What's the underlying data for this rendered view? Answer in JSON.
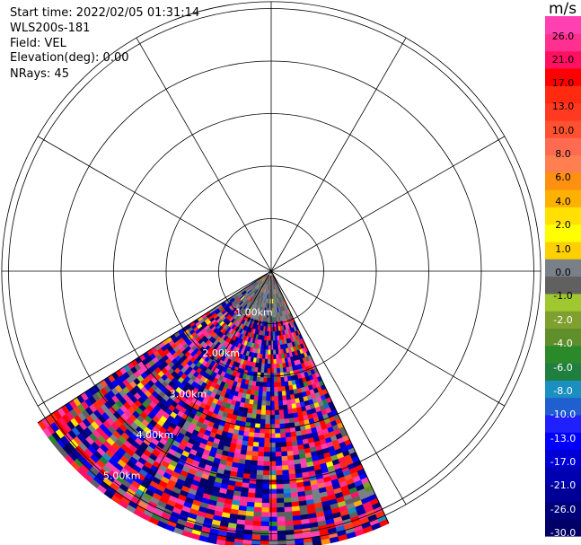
{
  "info": {
    "start_time": "Start time: 2022/02/05 01:31:14",
    "instrument": "WLS200s-181",
    "field": "Field: VEL",
    "elevation": "Elevation(deg): 0.00",
    "nrays": "NRays: 45"
  },
  "colorbar": {
    "unit": "m/s",
    "segments": [
      {
        "color": "#000066"
      },
      {
        "color": "#00007a"
      },
      {
        "color": "#000099"
      },
      {
        "color": "#0000b3"
      },
      {
        "color": "#0000d6"
      },
      {
        "color": "#0000ff"
      },
      {
        "color": "#2020ff"
      },
      {
        "color": "#1f5fd0"
      },
      {
        "color": "#1a8fc0"
      },
      {
        "color": "#1f7f3f"
      },
      {
        "color": "#2a8a2a"
      },
      {
        "color": "#5f8f2a"
      },
      {
        "color": "#7f9f2f"
      },
      {
        "color": "#9fc82f"
      },
      {
        "color": "#606060"
      },
      {
        "color": "#7a8088"
      },
      {
        "color": "#ffd000"
      },
      {
        "color": "#ffff00"
      },
      {
        "color": "#ffe000"
      },
      {
        "color": "#ffb000"
      },
      {
        "color": "#ff9010"
      },
      {
        "color": "#ff7f50"
      },
      {
        "color": "#ff6a50"
      },
      {
        "color": "#ff5030"
      },
      {
        "color": "#ff3a20"
      },
      {
        "color": "#ff2a10"
      },
      {
        "color": "#ff0000"
      },
      {
        "color": "#ff1060"
      },
      {
        "color": "#ff3090"
      },
      {
        "color": "#ff40b0"
      }
    ],
    "ticks": [
      "-30.0",
      "-26.0",
      "-21.0",
      "-17.0",
      "-13.0",
      "-10.0",
      "-8.0",
      "-6.0",
      "-4.0",
      "-2.0",
      "-1.0",
      "0.0",
      "1.0",
      "2.0",
      "4.0",
      "6.0",
      "8.0",
      "10.0",
      "13.0",
      "17.0",
      "21.0",
      "26.0"
    ]
  },
  "chart_data": {
    "type": "heatmap",
    "projection": "polar-ppi",
    "field": "VEL",
    "rings_km": [
      1,
      2,
      3,
      4,
      5
    ],
    "ring_labels": [
      "1.00km",
      "2.00km",
      "3.00km",
      "4.00km",
      "5.00km"
    ],
    "spoke_interval_deg": 30,
    "sector_az_deg": [
      155,
      237
    ],
    "max_range_km": 5.3,
    "nrays": 45,
    "value_range": [
      -30,
      30
    ],
    "value_unit": "m/s"
  }
}
